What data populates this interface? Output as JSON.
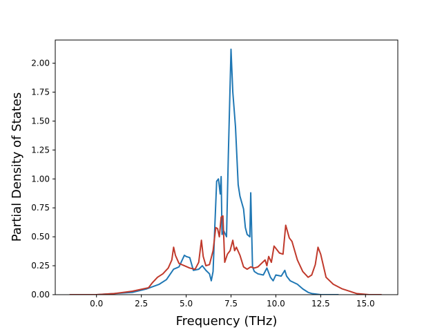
{
  "chart_data": {
    "type": "line",
    "title": "",
    "xlabel": "Frequency (THz)",
    "ylabel": "Partial Density of States",
    "xlim": [
      -2.3,
      16.8
    ],
    "ylim": [
      0,
      2.2
    ],
    "xticks": [
      0.0,
      2.5,
      5.0,
      7.5,
      10.0,
      12.5,
      15.0
    ],
    "xtick_labels": [
      "0.0",
      "2.5",
      "5.0",
      "7.5",
      "10.0",
      "12.5",
      "15.0"
    ],
    "yticks": [
      0.0,
      0.25,
      0.5,
      0.75,
      1.0,
      1.25,
      1.5,
      1.75,
      2.0
    ],
    "ytick_labels": [
      "0.00",
      "0.25",
      "0.50",
      "0.75",
      "1.00",
      "1.25",
      "1.50",
      "1.75",
      "2.00"
    ],
    "grid": false,
    "legend": "none",
    "series": [
      {
        "color": "#1f77b4",
        "x": [
          -1.5,
          0.0,
          1.0,
          2.0,
          2.8,
          3.5,
          3.9,
          4.3,
          4.6,
          4.9,
          5.0,
          5.2,
          5.4,
          5.7,
          5.9,
          6.1,
          6.3,
          6.4,
          6.5,
          6.6,
          6.7,
          6.8,
          6.9,
          6.95,
          7.0,
          7.1,
          7.25,
          7.35,
          7.5,
          7.6,
          7.75,
          7.9,
          8.0,
          8.2,
          8.3,
          8.4,
          8.55,
          8.6,
          8.7,
          8.8,
          9.0,
          9.3,
          9.5,
          9.7,
          9.85,
          10.0,
          10.3,
          10.5,
          10.6,
          10.8,
          11.2,
          11.5,
          11.8,
          12.0,
          12.5,
          13.0,
          13.5
        ],
        "y": [
          0.0,
          0.0,
          0.01,
          0.02,
          0.05,
          0.09,
          0.13,
          0.22,
          0.24,
          0.34,
          0.33,
          0.32,
          0.21,
          0.22,
          0.25,
          0.21,
          0.18,
          0.12,
          0.2,
          0.6,
          0.98,
          1.0,
          0.87,
          1.02,
          0.52,
          0.55,
          0.5,
          1.2,
          2.12,
          1.75,
          1.45,
          0.95,
          0.85,
          0.74,
          0.58,
          0.52,
          0.5,
          0.88,
          0.24,
          0.2,
          0.18,
          0.17,
          0.23,
          0.15,
          0.12,
          0.17,
          0.16,
          0.21,
          0.16,
          0.12,
          0.09,
          0.05,
          0.02,
          0.01,
          0.0,
          0.0,
          0.0
        ]
      },
      {
        "color": "#c0392b",
        "x": [
          -1.5,
          0.0,
          1.0,
          2.0,
          2.9,
          3.1,
          3.4,
          3.7,
          4.0,
          4.2,
          4.3,
          4.4,
          4.6,
          4.9,
          5.2,
          5.5,
          5.7,
          5.85,
          5.95,
          6.1,
          6.3,
          6.5,
          6.65,
          6.75,
          6.85,
          6.95,
          7.05,
          7.15,
          7.3,
          7.45,
          7.6,
          7.7,
          7.8,
          8.0,
          8.2,
          8.4,
          8.6,
          8.8,
          9.0,
          9.2,
          9.4,
          9.5,
          9.6,
          9.75,
          9.9,
          10.0,
          10.2,
          10.4,
          10.55,
          10.75,
          10.9,
          11.2,
          11.5,
          11.8,
          12.0,
          12.2,
          12.35,
          12.5,
          12.8,
          13.2,
          13.7,
          14.1,
          14.5,
          15.2,
          15.9
        ],
        "y": [
          0.0,
          0.0,
          0.01,
          0.03,
          0.06,
          0.1,
          0.15,
          0.18,
          0.23,
          0.3,
          0.41,
          0.34,
          0.27,
          0.25,
          0.23,
          0.22,
          0.28,
          0.47,
          0.33,
          0.25,
          0.26,
          0.38,
          0.58,
          0.57,
          0.5,
          0.67,
          0.68,
          0.28,
          0.35,
          0.38,
          0.47,
          0.38,
          0.41,
          0.34,
          0.24,
          0.22,
          0.24,
          0.23,
          0.24,
          0.27,
          0.3,
          0.25,
          0.33,
          0.28,
          0.42,
          0.4,
          0.36,
          0.35,
          0.6,
          0.49,
          0.46,
          0.3,
          0.2,
          0.15,
          0.17,
          0.26,
          0.41,
          0.35,
          0.15,
          0.09,
          0.05,
          0.03,
          0.01,
          0.0,
          0.0
        ]
      }
    ]
  }
}
